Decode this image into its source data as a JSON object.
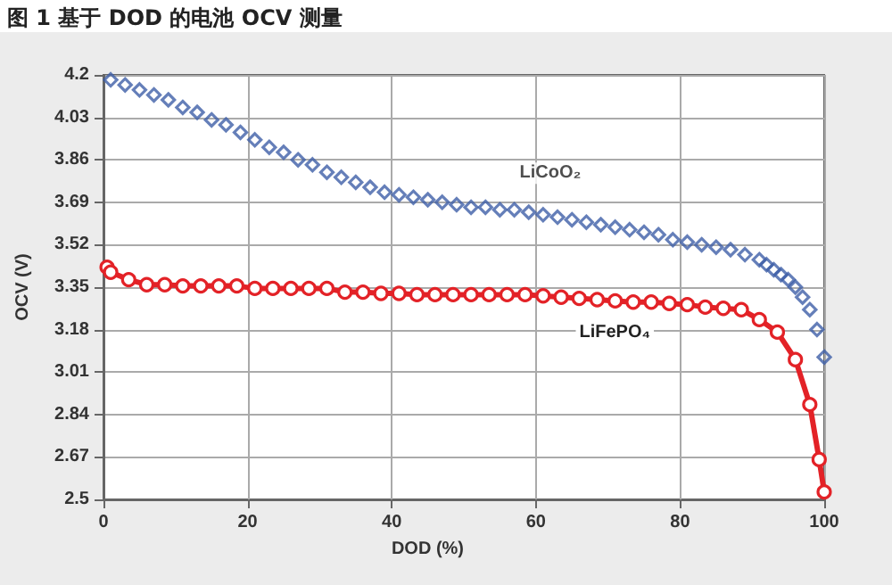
{
  "chart_data": {
    "type": "scatter",
    "title": "图 1 基于 DOD 的电池 OCV 测量",
    "xlabel": "DOD (%)",
    "ylabel": "OCV (V)",
    "xlim": [
      0,
      100
    ],
    "xticks": [
      0,
      20,
      40,
      60,
      80,
      100
    ],
    "ylim": [
      2.5,
      4.2
    ],
    "yticks": [
      2.5,
      2.67,
      2.84,
      3.01,
      3.18,
      3.35,
      3.52,
      3.69,
      3.86,
      4.03,
      4.2
    ],
    "grid": true,
    "series": [
      {
        "name": "LiCoO₂",
        "marker": "diamond",
        "color": "#3f5fa8",
        "x": [
          1,
          3,
          5,
          7,
          9,
          11,
          13,
          15,
          17,
          19,
          21,
          23,
          25,
          27,
          29,
          31,
          33,
          35,
          37,
          39,
          41,
          43,
          45,
          47,
          49,
          51,
          53,
          55,
          57,
          59,
          61,
          63,
          65,
          67,
          69,
          71,
          73,
          75,
          77,
          79,
          81,
          83,
          85,
          87,
          89,
          91,
          92,
          93,
          94,
          95,
          96,
          97,
          98,
          99,
          100
        ],
        "values": [
          4.18,
          4.16,
          4.14,
          4.12,
          4.1,
          4.07,
          4.05,
          4.02,
          4.0,
          3.97,
          3.94,
          3.91,
          3.89,
          3.86,
          3.84,
          3.81,
          3.79,
          3.77,
          3.75,
          3.73,
          3.72,
          3.71,
          3.7,
          3.69,
          3.68,
          3.67,
          3.67,
          3.66,
          3.66,
          3.65,
          3.64,
          3.63,
          3.62,
          3.61,
          3.6,
          3.59,
          3.58,
          3.57,
          3.56,
          3.54,
          3.53,
          3.52,
          3.51,
          3.5,
          3.48,
          3.46,
          3.44,
          3.42,
          3.4,
          3.38,
          3.35,
          3.31,
          3.26,
          3.18,
          3.07
        ]
      },
      {
        "name": "LiFePO₄",
        "type": "line",
        "marker": "circle",
        "line_style": "solid",
        "color": "#e32227",
        "x": [
          0.5,
          1,
          3.5,
          6,
          8.5,
          11,
          13.5,
          16,
          18.5,
          21,
          23.5,
          26,
          28.5,
          31,
          33.5,
          36,
          38.5,
          41,
          43.5,
          46,
          48.5,
          51,
          53.5,
          56,
          58.5,
          61,
          63.5,
          66,
          68.5,
          71,
          73.5,
          76,
          78.5,
          81,
          83.5,
          86,
          88.5,
          91,
          93.5,
          96,
          98,
          99.3,
          100
        ],
        "values": [
          3.43,
          3.41,
          3.38,
          3.36,
          3.36,
          3.355,
          3.355,
          3.355,
          3.355,
          3.345,
          3.345,
          3.345,
          3.345,
          3.345,
          3.33,
          3.33,
          3.325,
          3.325,
          3.32,
          3.32,
          3.32,
          3.32,
          3.32,
          3.32,
          3.32,
          3.315,
          3.31,
          3.305,
          3.3,
          3.295,
          3.29,
          3.29,
          3.285,
          3.28,
          3.27,
          3.265,
          3.26,
          3.22,
          3.17,
          3.06,
          2.88,
          2.66,
          2.53
        ]
      }
    ]
  }
}
